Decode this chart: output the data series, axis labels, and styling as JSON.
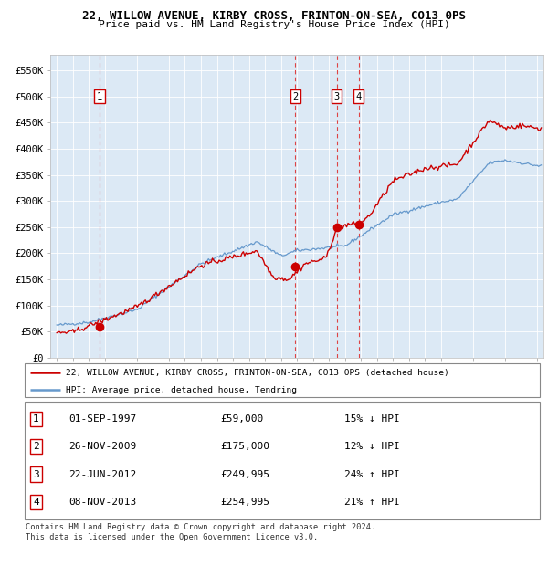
{
  "title": "22, WILLOW AVENUE, KIRBY CROSS, FRINTON-ON-SEA, CO13 0PS",
  "subtitle": "Price paid vs. HM Land Registry's House Price Index (HPI)",
  "plot_bg_color": "#dce9f5",
  "red_line_color": "#cc0000",
  "blue_line_color": "#6699cc",
  "ylim": [
    0,
    580000
  ],
  "yticks": [
    0,
    50000,
    100000,
    150000,
    200000,
    250000,
    300000,
    350000,
    400000,
    450000,
    500000,
    550000
  ],
  "ytick_labels": [
    "£0",
    "£50K",
    "£100K",
    "£150K",
    "£200K",
    "£250K",
    "£300K",
    "£350K",
    "£400K",
    "£450K",
    "£500K",
    "£550K"
  ],
  "xlim_start": 1994.6,
  "xlim_end": 2025.4,
  "transaction_dates": [
    1997.67,
    2009.9,
    2012.47,
    2013.85
  ],
  "transaction_prices": [
    59000,
    175000,
    249995,
    254995
  ],
  "transaction_labels": [
    "1",
    "2",
    "3",
    "4"
  ],
  "legend_red": "22, WILLOW AVENUE, KIRBY CROSS, FRINTON-ON-SEA, CO13 0PS (detached house)",
  "legend_blue": "HPI: Average price, detached house, Tendring",
  "table_rows": [
    [
      "1",
      "01-SEP-1997",
      "£59,000",
      "15% ↓ HPI"
    ],
    [
      "2",
      "26-NOV-2009",
      "£175,000",
      "12% ↓ HPI"
    ],
    [
      "3",
      "22-JUN-2012",
      "£249,995",
      "24% ↑ HPI"
    ],
    [
      "4",
      "08-NOV-2013",
      "£254,995",
      "21% ↑ HPI"
    ]
  ],
  "footer": "Contains HM Land Registry data © Crown copyright and database right 2024.\nThis data is licensed under the Open Government Licence v3.0."
}
